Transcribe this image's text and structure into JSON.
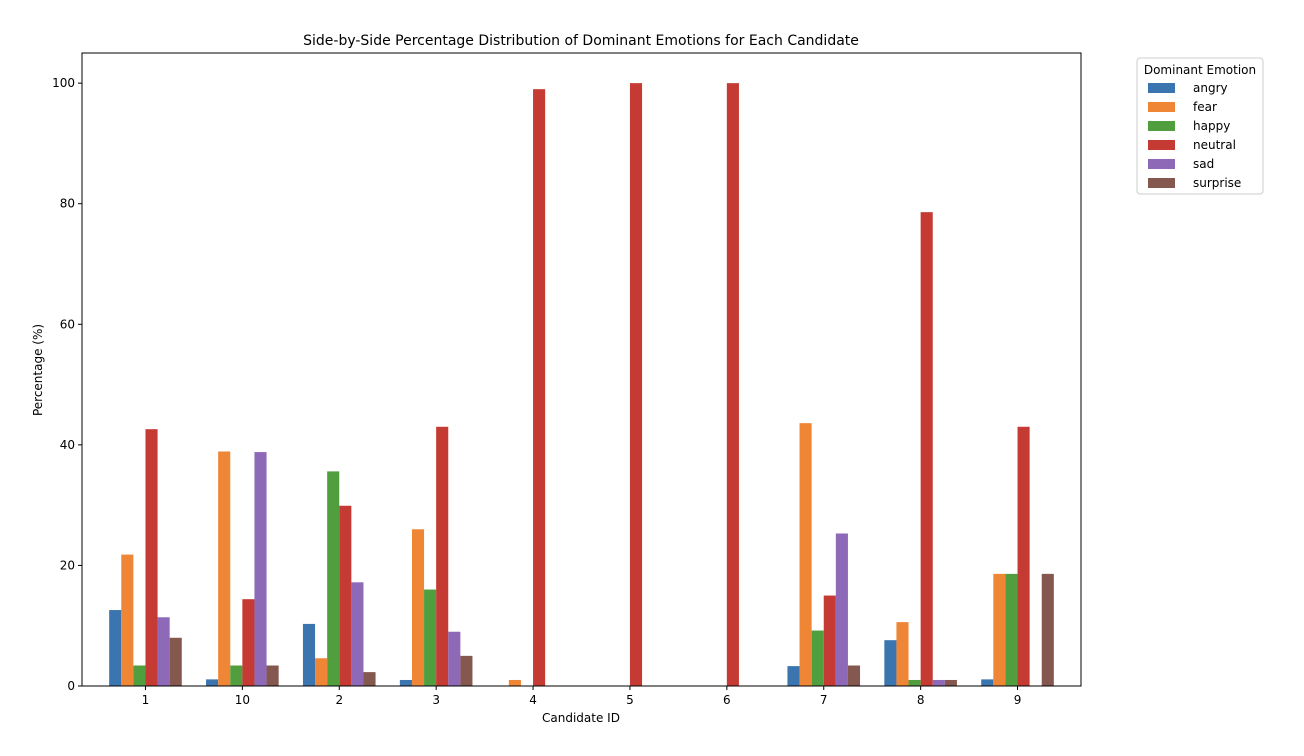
{
  "chart_data": {
    "type": "bar",
    "title": "Side-by-Side Percentage Distribution of Dominant Emotions for Each Candidate",
    "xlabel": "Candidate ID",
    "ylabel": "Percentage (%)",
    "ylim": [
      0,
      105
    ],
    "yticks": [
      0,
      20,
      40,
      60,
      80,
      100
    ],
    "grid": false,
    "categories": [
      "1",
      "10",
      "2",
      "3",
      "4",
      "5",
      "6",
      "7",
      "8",
      "9"
    ],
    "legend": {
      "title": "Dominant Emotion",
      "placement": "outside-top-right"
    },
    "series": [
      {
        "name": "angry",
        "color": "#3b75af",
        "values": [
          12.6,
          1.1,
          10.3,
          1.0,
          0,
          0,
          0,
          3.3,
          7.6,
          1.1
        ]
      },
      {
        "name": "fear",
        "color": "#ef8636",
        "values": [
          21.8,
          38.9,
          4.6,
          26.0,
          1.0,
          0,
          0,
          43.6,
          10.6,
          18.6
        ]
      },
      {
        "name": "happy",
        "color": "#519e3e",
        "values": [
          3.4,
          3.4,
          35.6,
          16.0,
          0,
          0,
          0,
          9.2,
          1.0,
          18.6
        ]
      },
      {
        "name": "neutral",
        "color": "#c53a32",
        "values": [
          42.6,
          14.4,
          29.9,
          43.0,
          99.0,
          100,
          100,
          15.0,
          78.6,
          43.0
        ]
      },
      {
        "name": "sad",
        "color": "#8d69b8",
        "values": [
          11.4,
          38.8,
          17.2,
          9.0,
          0,
          0,
          0,
          25.3,
          1.0,
          0
        ]
      },
      {
        "name": "surprise",
        "color": "#84584e",
        "values": [
          8.0,
          3.4,
          2.3,
          5.0,
          0,
          0,
          0,
          3.4,
          1.0,
          18.6
        ]
      }
    ]
  }
}
